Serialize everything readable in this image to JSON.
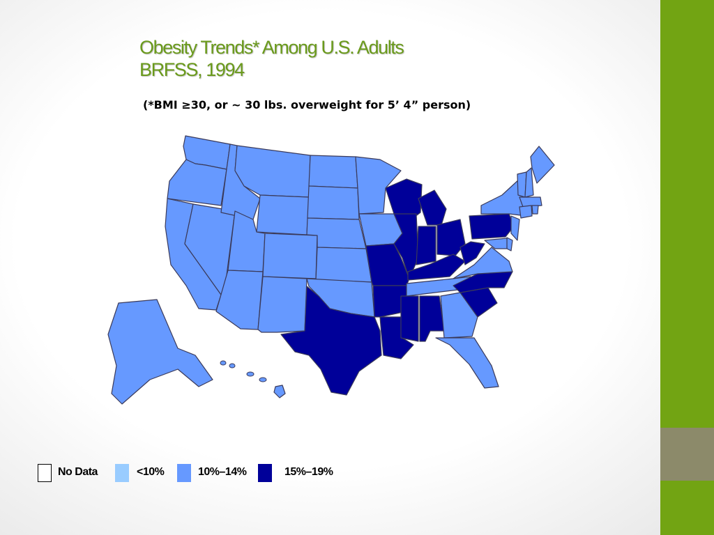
{
  "slide": {
    "title_line1": "Obesity Trends* Among U.S. Adults",
    "title_line2": "BRFSS, 1994",
    "subtitle": "(*BMI ≥30, or ~ 30 lbs. overweight for 5’ 4” person)"
  },
  "colors": {
    "title": "#6a9a1b",
    "accent_green": "#72a413",
    "accent_gray": "#8c8a6a",
    "no_data": "#ffffff",
    "lt10": "#99ccff",
    "p10_14": "#6699ff",
    "p15_19": "#000099",
    "border": "#3a3a5a"
  },
  "legend": [
    {
      "label": "No Data",
      "category": "no_data"
    },
    {
      "label": "<10%",
      "category": "lt10"
    },
    {
      "label": "10%–14%",
      "category": "p10_14"
    },
    {
      "label": "15%–19%",
      "category": "p15_19"
    }
  ],
  "states": {
    "p10_14": [
      "WA",
      "OR",
      "CA",
      "NV",
      "ID",
      "MT",
      "WY",
      "UT",
      "AZ",
      "CO",
      "NM",
      "ND",
      "SD",
      "NE",
      "KS",
      "OK",
      "MN",
      "IA",
      "TN",
      "VA",
      "GA",
      "FL",
      "NY",
      "VT",
      "NH",
      "ME",
      "MA",
      "CT",
      "RI",
      "NJ",
      "DE",
      "MD",
      "AK",
      "HI"
    ],
    "p15_19": [
      "TX",
      "MO",
      "AR",
      "LA",
      "MS",
      "AL",
      "WI",
      "MI",
      "IL",
      "IN",
      "OH",
      "KY",
      "WV",
      "PA",
      "NC",
      "SC"
    ]
  }
}
